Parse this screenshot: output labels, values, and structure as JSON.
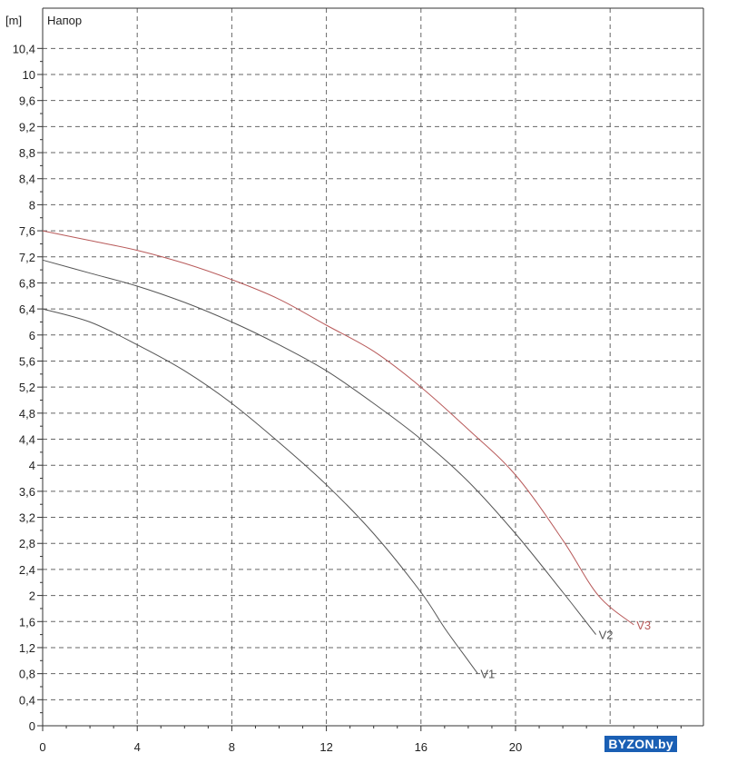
{
  "chart_data": {
    "type": "line",
    "ylabel": "Напор",
    "y_unit": "[m]",
    "xlim": [
      0,
      28
    ],
    "ylim": [
      0,
      10.8
    ],
    "x_ticks": [
      "0",
      "4",
      "8",
      "12",
      "16",
      "20"
    ],
    "y_ticks": [
      "0",
      "0,4",
      "0,8",
      "1,2",
      "1,6",
      "2",
      "2,4",
      "2,8",
      "3,2",
      "3,6",
      "4",
      "4,4",
      "4,8",
      "5,2",
      "5,6",
      "6",
      "6,4",
      "6,8",
      "7,2",
      "7,6",
      "8",
      "8,4",
      "8,8",
      "9,2",
      "9,6",
      "10",
      "10,4"
    ],
    "grid": true,
    "series": [
      {
        "name": "V1",
        "color": "#555555",
        "x": [
          0,
          2,
          4,
          6,
          8,
          10,
          12,
          14,
          16,
          17,
          18,
          18.4
        ],
        "y": [
          6.4,
          6.2,
          5.85,
          5.45,
          4.95,
          4.35,
          3.7,
          2.95,
          2.05,
          1.5,
          1.0,
          0.8
        ]
      },
      {
        "name": "V2",
        "color": "#555555",
        "x": [
          0,
          2,
          4,
          6,
          8,
          10,
          12,
          14,
          16,
          18,
          20,
          22,
          23.4
        ],
        "y": [
          7.15,
          6.95,
          6.75,
          6.5,
          6.2,
          5.85,
          5.45,
          4.95,
          4.4,
          3.75,
          2.95,
          2.05,
          1.4
        ]
      },
      {
        "name": "V3",
        "color": "#b85a5a",
        "x": [
          0,
          2,
          4,
          6,
          8,
          10,
          12,
          14,
          16,
          18,
          20,
          22,
          23.5,
          25
        ],
        "y": [
          7.6,
          7.45,
          7.3,
          7.1,
          6.85,
          6.55,
          6.15,
          5.75,
          5.2,
          4.55,
          3.85,
          2.85,
          2.0,
          1.55
        ]
      }
    ]
  },
  "watermark": "BYZON.by"
}
